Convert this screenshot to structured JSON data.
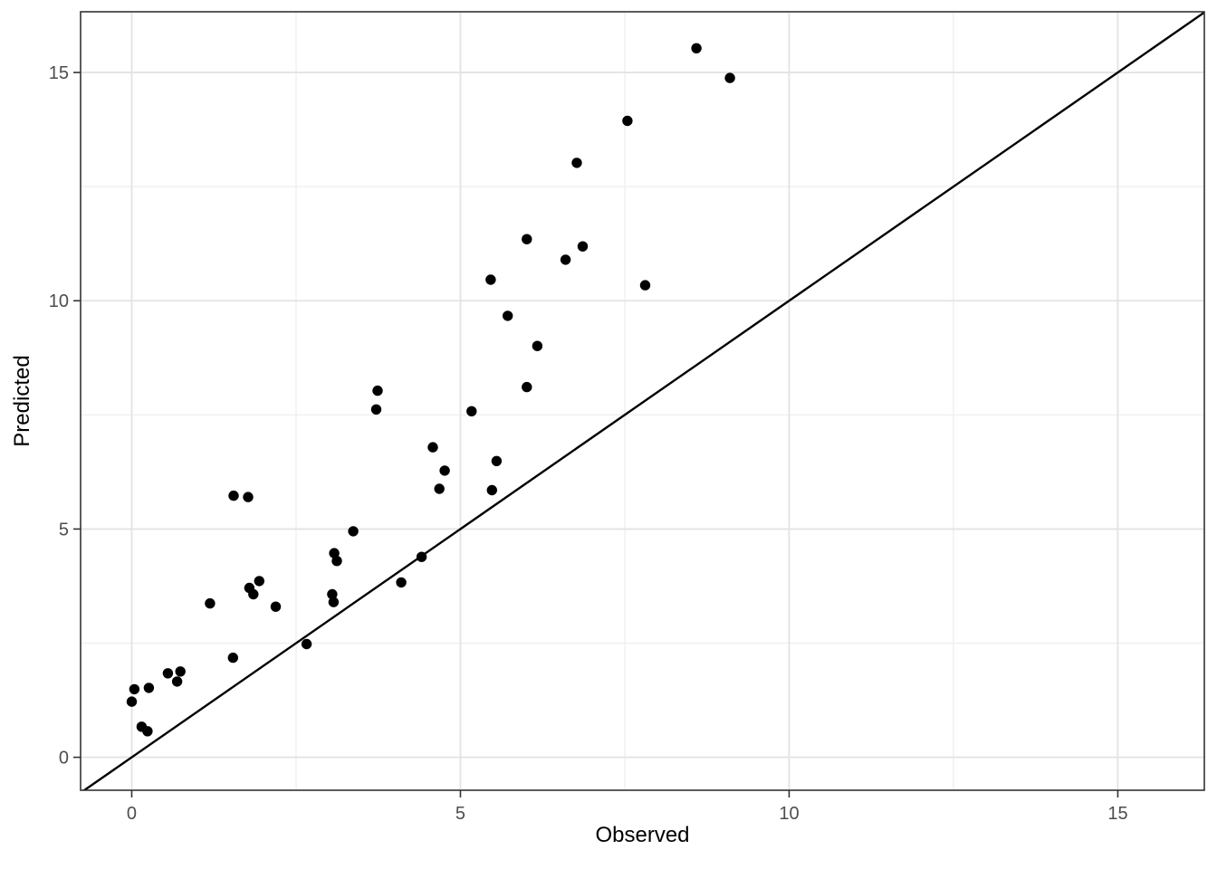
{
  "figure": {
    "background": "#FFFFFF",
    "colors": {
      "point": "#000000",
      "reference_line": "#000000",
      "grid_major": "#E3E3E3",
      "grid_minor": "#EFEFEF",
      "panel_border": "#333333",
      "tick_mark": "#333333",
      "tick_label": "#4D4D4D",
      "axis_title": "#000000",
      "panel_fill": "#FFFFFF"
    }
  },
  "chart_data": {
    "type": "scatter",
    "title": "",
    "xlabel": "Observed",
    "ylabel": "Predicted",
    "xlim": [
      -0.778,
      16.316
    ],
    "ylim": [
      -0.722,
      16.33
    ],
    "x_ticks": [
      0,
      5,
      10,
      15
    ],
    "y_ticks": [
      0,
      5,
      10,
      15
    ],
    "x_minor_ticks": [
      2.5,
      7.5,
      12.5
    ],
    "y_minor_ticks": [
      2.5,
      7.5,
      12.5
    ],
    "grid": true,
    "legend": "none",
    "reference_line": {
      "type": "identity",
      "slope": 1,
      "intercept": 0
    },
    "points": [
      [
        8.59,
        15.53
      ],
      [
        9.1,
        14.88
      ],
      [
        7.54,
        13.94
      ],
      [
        6.77,
        13.02
      ],
      [
        6.01,
        11.35
      ],
      [
        6.86,
        11.19
      ],
      [
        6.6,
        10.9
      ],
      [
        5.46,
        10.46
      ],
      [
        7.81,
        10.34
      ],
      [
        5.72,
        9.67
      ],
      [
        6.17,
        9.01
      ],
      [
        6.01,
        8.11
      ],
      [
        3.74,
        8.03
      ],
      [
        3.72,
        7.62
      ],
      [
        5.17,
        7.58
      ],
      [
        4.58,
        6.79
      ],
      [
        5.55,
        6.49
      ],
      [
        4.76,
        6.28
      ],
      [
        4.68,
        5.88
      ],
      [
        5.48,
        5.85
      ],
      [
        1.55,
        5.73
      ],
      [
        1.77,
        5.7
      ],
      [
        3.37,
        4.95
      ],
      [
        3.08,
        4.47
      ],
      [
        3.12,
        4.3
      ],
      [
        4.41,
        4.39
      ],
      [
        4.1,
        3.83
      ],
      [
        1.94,
        3.86
      ],
      [
        1.79,
        3.71
      ],
      [
        1.85,
        3.57
      ],
      [
        2.19,
        3.3
      ],
      [
        3.05,
        3.57
      ],
      [
        3.07,
        3.4
      ],
      [
        1.19,
        3.37
      ],
      [
        2.66,
        2.48
      ],
      [
        1.54,
        2.18
      ],
      [
        0.55,
        1.84
      ],
      [
        0.74,
        1.88
      ],
      [
        0.69,
        1.66
      ],
      [
        0.26,
        1.52
      ],
      [
        0.04,
        1.49
      ],
      [
        0.0,
        1.22
      ],
      [
        0.15,
        0.67
      ],
      [
        0.24,
        0.57
      ]
    ]
  }
}
